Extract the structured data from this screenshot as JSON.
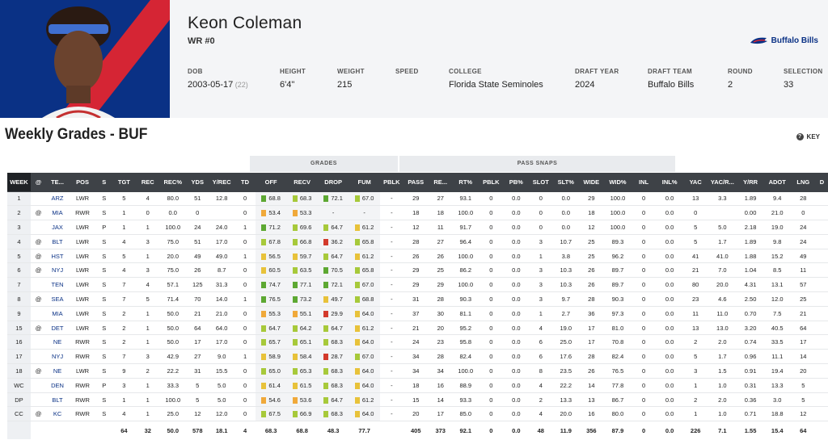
{
  "player": {
    "name": "Keon Coleman",
    "position": "WR #0",
    "team": "Buffalo Bills"
  },
  "meta": [
    {
      "label": "DOB",
      "value": "2003-05-17",
      "extra": "(22)"
    },
    {
      "label": "HEIGHT",
      "value": "6'4\""
    },
    {
      "label": "WEIGHT",
      "value": "215"
    },
    {
      "label": "SPEED",
      "value": ""
    },
    {
      "label": "COLLEGE",
      "value": "Florida State Seminoles"
    },
    {
      "label": "DRAFT YEAR",
      "value": "2024"
    },
    {
      "label": "DRAFT TEAM",
      "value": "Buffalo Bills"
    },
    {
      "label": "ROUND",
      "value": "2"
    },
    {
      "label": "SELECTION",
      "value": "33"
    }
  ],
  "section_title": "Weekly Grades - BUF",
  "key_label": "KEY",
  "groups": {
    "grades": "GRADES",
    "pass_snaps": "PASS SNAPS"
  },
  "columns": [
    "WEEK",
    "@",
    "TE...",
    "POS",
    "S",
    "TGT",
    "REC",
    "REC%",
    "YDS",
    "Y/REC",
    "TD",
    "OFF",
    "RECV",
    "DROP",
    "FUM",
    "PBLK",
    "PASS",
    "RE...",
    "RT%",
    "PBLK",
    "PB%",
    "SLOT",
    "SLT%",
    "WIDE",
    "WID%",
    "INL",
    "INL%",
    "YAC",
    "YAC/R...",
    "Y/RR",
    "ADOT",
    "LNG",
    "D"
  ],
  "grade_colors": {
    "green": "#5da832",
    "lightgreen": "#a7c93a",
    "yellow": "#e8c23a",
    "orange": "#f0a93a",
    "red": "#d33a2c"
  },
  "rows": [
    [
      "1",
      "",
      "ARZ",
      "LWR",
      "S",
      "5",
      "4",
      "80.0",
      "51",
      "12.8",
      "0",
      "68.8",
      "68.3",
      "72.1",
      "67.0",
      "-",
      "29",
      "27",
      "93.1",
      "0",
      "0.0",
      "0",
      "0.0",
      "29",
      "100.0",
      "0",
      "0.0",
      "13",
      "3.3",
      "1.89",
      "9.4",
      "28",
      ""
    ],
    [
      "2",
      "@",
      "MIA",
      "RWR",
      "S",
      "1",
      "0",
      "0.0",
      "0",
      "",
      "0",
      "53.4",
      "53.3",
      "-",
      "-",
      "-",
      "18",
      "18",
      "100.0",
      "0",
      "0.0",
      "0",
      "0.0",
      "18",
      "100.0",
      "0",
      "0.0",
      "0",
      "",
      "0.00",
      "21.0",
      "0",
      ""
    ],
    [
      "3",
      "",
      "JAX",
      "LWR",
      "P",
      "1",
      "1",
      "100.0",
      "24",
      "24.0",
      "1",
      "71.2",
      "69.6",
      "64.7",
      "61.2",
      "-",
      "12",
      "11",
      "91.7",
      "0",
      "0.0",
      "0",
      "0.0",
      "12",
      "100.0",
      "0",
      "0.0",
      "5",
      "5.0",
      "2.18",
      "19.0",
      "24",
      ""
    ],
    [
      "4",
      "@",
      "BLT",
      "LWR",
      "S",
      "4",
      "3",
      "75.0",
      "51",
      "17.0",
      "0",
      "67.8",
      "66.8",
      "36.2",
      "65.8",
      "-",
      "28",
      "27",
      "96.4",
      "0",
      "0.0",
      "3",
      "10.7",
      "25",
      "89.3",
      "0",
      "0.0",
      "5",
      "1.7",
      "1.89",
      "9.8",
      "24",
      ""
    ],
    [
      "5",
      "@",
      "HST",
      "LWR",
      "S",
      "5",
      "1",
      "20.0",
      "49",
      "49.0",
      "1",
      "56.5",
      "59.7",
      "64.7",
      "61.2",
      "-",
      "26",
      "26",
      "100.0",
      "0",
      "0.0",
      "1",
      "3.8",
      "25",
      "96.2",
      "0",
      "0.0",
      "41",
      "41.0",
      "1.88",
      "15.2",
      "49",
      ""
    ],
    [
      "6",
      "@",
      "NYJ",
      "LWR",
      "S",
      "4",
      "3",
      "75.0",
      "26",
      "8.7",
      "0",
      "60.5",
      "63.5",
      "70.5",
      "65.8",
      "-",
      "29",
      "25",
      "86.2",
      "0",
      "0.0",
      "3",
      "10.3",
      "26",
      "89.7",
      "0",
      "0.0",
      "21",
      "7.0",
      "1.04",
      "8.5",
      "11",
      ""
    ],
    [
      "7",
      "",
      "TEN",
      "LWR",
      "S",
      "7",
      "4",
      "57.1",
      "125",
      "31.3",
      "0",
      "74.7",
      "77.1",
      "72.1",
      "67.0",
      "-",
      "29",
      "29",
      "100.0",
      "0",
      "0.0",
      "3",
      "10.3",
      "26",
      "89.7",
      "0",
      "0.0",
      "80",
      "20.0",
      "4.31",
      "13.1",
      "57",
      ""
    ],
    [
      "8",
      "@",
      "SEA",
      "LWR",
      "S",
      "7",
      "5",
      "71.4",
      "70",
      "14.0",
      "1",
      "76.5",
      "73.2",
      "49.7",
      "68.8",
      "-",
      "31",
      "28",
      "90.3",
      "0",
      "0.0",
      "3",
      "9.7",
      "28",
      "90.3",
      "0",
      "0.0",
      "23",
      "4.6",
      "2.50",
      "12.0",
      "25",
      ""
    ],
    [
      "9",
      "",
      "MIA",
      "LWR",
      "S",
      "2",
      "1",
      "50.0",
      "21",
      "21.0",
      "0",
      "55.3",
      "55.1",
      "29.9",
      "64.0",
      "-",
      "37",
      "30",
      "81.1",
      "0",
      "0.0",
      "1",
      "2.7",
      "36",
      "97.3",
      "0",
      "0.0",
      "11",
      "11.0",
      "0.70",
      "7.5",
      "21",
      ""
    ],
    [
      "15",
      "@",
      "DET",
      "LWR",
      "S",
      "2",
      "1",
      "50.0",
      "64",
      "64.0",
      "0",
      "64.7",
      "64.2",
      "64.7",
      "61.2",
      "-",
      "21",
      "20",
      "95.2",
      "0",
      "0.0",
      "4",
      "19.0",
      "17",
      "81.0",
      "0",
      "0.0",
      "13",
      "13.0",
      "3.20",
      "40.5",
      "64",
      ""
    ],
    [
      "16",
      "",
      "NE",
      "RWR",
      "S",
      "2",
      "1",
      "50.0",
      "17",
      "17.0",
      "0",
      "65.7",
      "65.1",
      "68.3",
      "64.0",
      "-",
      "24",
      "23",
      "95.8",
      "0",
      "0.0",
      "6",
      "25.0",
      "17",
      "70.8",
      "0",
      "0.0",
      "2",
      "2.0",
      "0.74",
      "33.5",
      "17",
      ""
    ],
    [
      "17",
      "",
      "NYJ",
      "RWR",
      "S",
      "7",
      "3",
      "42.9",
      "27",
      "9.0",
      "1",
      "58.9",
      "58.4",
      "28.7",
      "67.0",
      "-",
      "34",
      "28",
      "82.4",
      "0",
      "0.0",
      "6",
      "17.6",
      "28",
      "82.4",
      "0",
      "0.0",
      "5",
      "1.7",
      "0.96",
      "11.1",
      "14",
      ""
    ],
    [
      "18",
      "@",
      "NE",
      "LWR",
      "S",
      "9",
      "2",
      "22.2",
      "31",
      "15.5",
      "0",
      "65.0",
      "65.3",
      "68.3",
      "64.0",
      "-",
      "34",
      "34",
      "100.0",
      "0",
      "0.0",
      "8",
      "23.5",
      "26",
      "76.5",
      "0",
      "0.0",
      "3",
      "1.5",
      "0.91",
      "19.4",
      "20",
      ""
    ],
    [
      "WC",
      "",
      "DEN",
      "RWR",
      "P",
      "3",
      "1",
      "33.3",
      "5",
      "5.0",
      "0",
      "61.4",
      "61.5",
      "68.3",
      "64.0",
      "-",
      "18",
      "16",
      "88.9",
      "0",
      "0.0",
      "4",
      "22.2",
      "14",
      "77.8",
      "0",
      "0.0",
      "1",
      "1.0",
      "0.31",
      "13.3",
      "5",
      ""
    ],
    [
      "DP",
      "",
      "BLT",
      "RWR",
      "S",
      "1",
      "1",
      "100.0",
      "5",
      "5.0",
      "0",
      "54.6",
      "53.6",
      "64.7",
      "61.2",
      "-",
      "15",
      "14",
      "93.3",
      "0",
      "0.0",
      "2",
      "13.3",
      "13",
      "86.7",
      "0",
      "0.0",
      "2",
      "2.0",
      "0.36",
      "3.0",
      "5",
      ""
    ],
    [
      "CC",
      "@",
      "KC",
      "RWR",
      "S",
      "4",
      "1",
      "25.0",
      "12",
      "12.0",
      "0",
      "67.5",
      "66.9",
      "68.3",
      "64.0",
      "-",
      "20",
      "17",
      "85.0",
      "0",
      "0.0",
      "4",
      "20.0",
      "16",
      "80.0",
      "0",
      "0.0",
      "1",
      "1.0",
      "0.71",
      "18.8",
      "12",
      ""
    ]
  ],
  "grade_cells": [
    [
      "green",
      "lightgreen",
      "green",
      "lightgreen"
    ],
    [
      "orange",
      "orange",
      "",
      ""
    ],
    [
      "green",
      "lightgreen",
      "lightgreen",
      "yellow"
    ],
    [
      "lightgreen",
      "lightgreen",
      "red",
      "lightgreen"
    ],
    [
      "yellow",
      "yellow",
      "lightgreen",
      "yellow"
    ],
    [
      "yellow",
      "lightgreen",
      "green",
      "lightgreen"
    ],
    [
      "green",
      "green",
      "green",
      "lightgreen"
    ],
    [
      "green",
      "green",
      "yellow",
      "lightgreen"
    ],
    [
      "orange",
      "orange",
      "red",
      "yellow"
    ],
    [
      "lightgreen",
      "lightgreen",
      "lightgreen",
      "yellow"
    ],
    [
      "lightgreen",
      "lightgreen",
      "lightgreen",
      "yellow"
    ],
    [
      "yellow",
      "yellow",
      "red",
      "lightgreen"
    ],
    [
      "lightgreen",
      "lightgreen",
      "lightgreen",
      "yellow"
    ],
    [
      "yellow",
      "yellow",
      "lightgreen",
      "yellow"
    ],
    [
      "orange",
      "orange",
      "lightgreen",
      "yellow"
    ],
    [
      "lightgreen",
      "lightgreen",
      "lightgreen",
      "yellow"
    ]
  ],
  "totals": [
    "",
    "",
    "",
    "",
    "",
    "64",
    "32",
    "50.0",
    "578",
    "18.1",
    "4",
    "68.3",
    "68.8",
    "48.3",
    "77.7",
    "",
    "405",
    "373",
    "92.1",
    "0",
    "0.0",
    "48",
    "11.9",
    "356",
    "87.9",
    "0",
    "0.0",
    "226",
    "7.1",
    "1.55",
    "15.4",
    "64",
    ""
  ]
}
